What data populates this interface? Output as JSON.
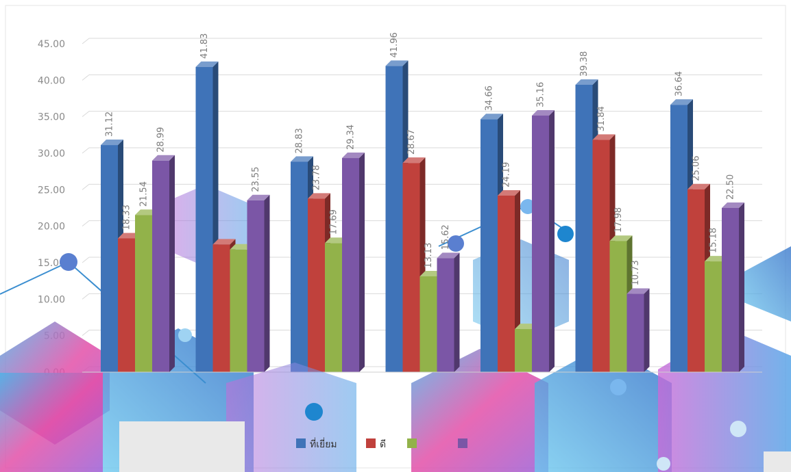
{
  "chart_data": {
    "type": "bar",
    "title": "",
    "xlabel": "",
    "ylabel": "",
    "ylim": [
      0,
      45
    ],
    "y_ticks": [
      "0.00",
      "5.00",
      "10.00",
      "15.00",
      "20.00",
      "25.00",
      "30.00",
      "35.00",
      "40.00",
      "45.00"
    ],
    "grid": true,
    "legend_position": "bottom",
    "categories": [
      "",
      "",
      "",
      "",
      "",
      "",
      ""
    ],
    "series": [
      {
        "name": "ที่เยี่ยม",
        "color": "#3f73b8",
        "values": [
          31.12,
          41.83,
          28.83,
          41.96,
          34.66,
          39.38,
          36.64
        ],
        "labels": [
          "31.12",
          "41.83",
          "28.83",
          "41.96",
          "34.66",
          "39.38",
          "36.64"
        ]
      },
      {
        "name": "ดี",
        "color": "#c0413c",
        "values": [
          18.33,
          17.5,
          23.78,
          28.67,
          24.19,
          31.84,
          25.06
        ],
        "labels": [
          "18.33",
          "",
          "23.78",
          "28.67",
          "24.19",
          "31.84",
          "25.06"
        ]
      },
      {
        "name": "",
        "color": "#92b24a",
        "values": [
          21.54,
          16.8,
          17.69,
          13.13,
          5.9,
          17.98,
          15.18
        ],
        "labels": [
          "21.54",
          "",
          "17.69",
          "13.13",
          "",
          "17.98",
          "15.18"
        ]
      },
      {
        "name": "",
        "color": "#7b56a6",
        "values": [
          28.99,
          23.55,
          29.34,
          15.62,
          35.16,
          10.73,
          22.5
        ],
        "labels": [
          "28.99",
          "23.55",
          "29.34",
          "15.62",
          "35.16",
          "10.73",
          "22.50"
        ]
      }
    ]
  },
  "decoration": {
    "palette": [
      "#4fb3e8",
      "#e34fa8",
      "#2d6fc8",
      "#9b5fd6",
      "#6ec9ef"
    ]
  }
}
